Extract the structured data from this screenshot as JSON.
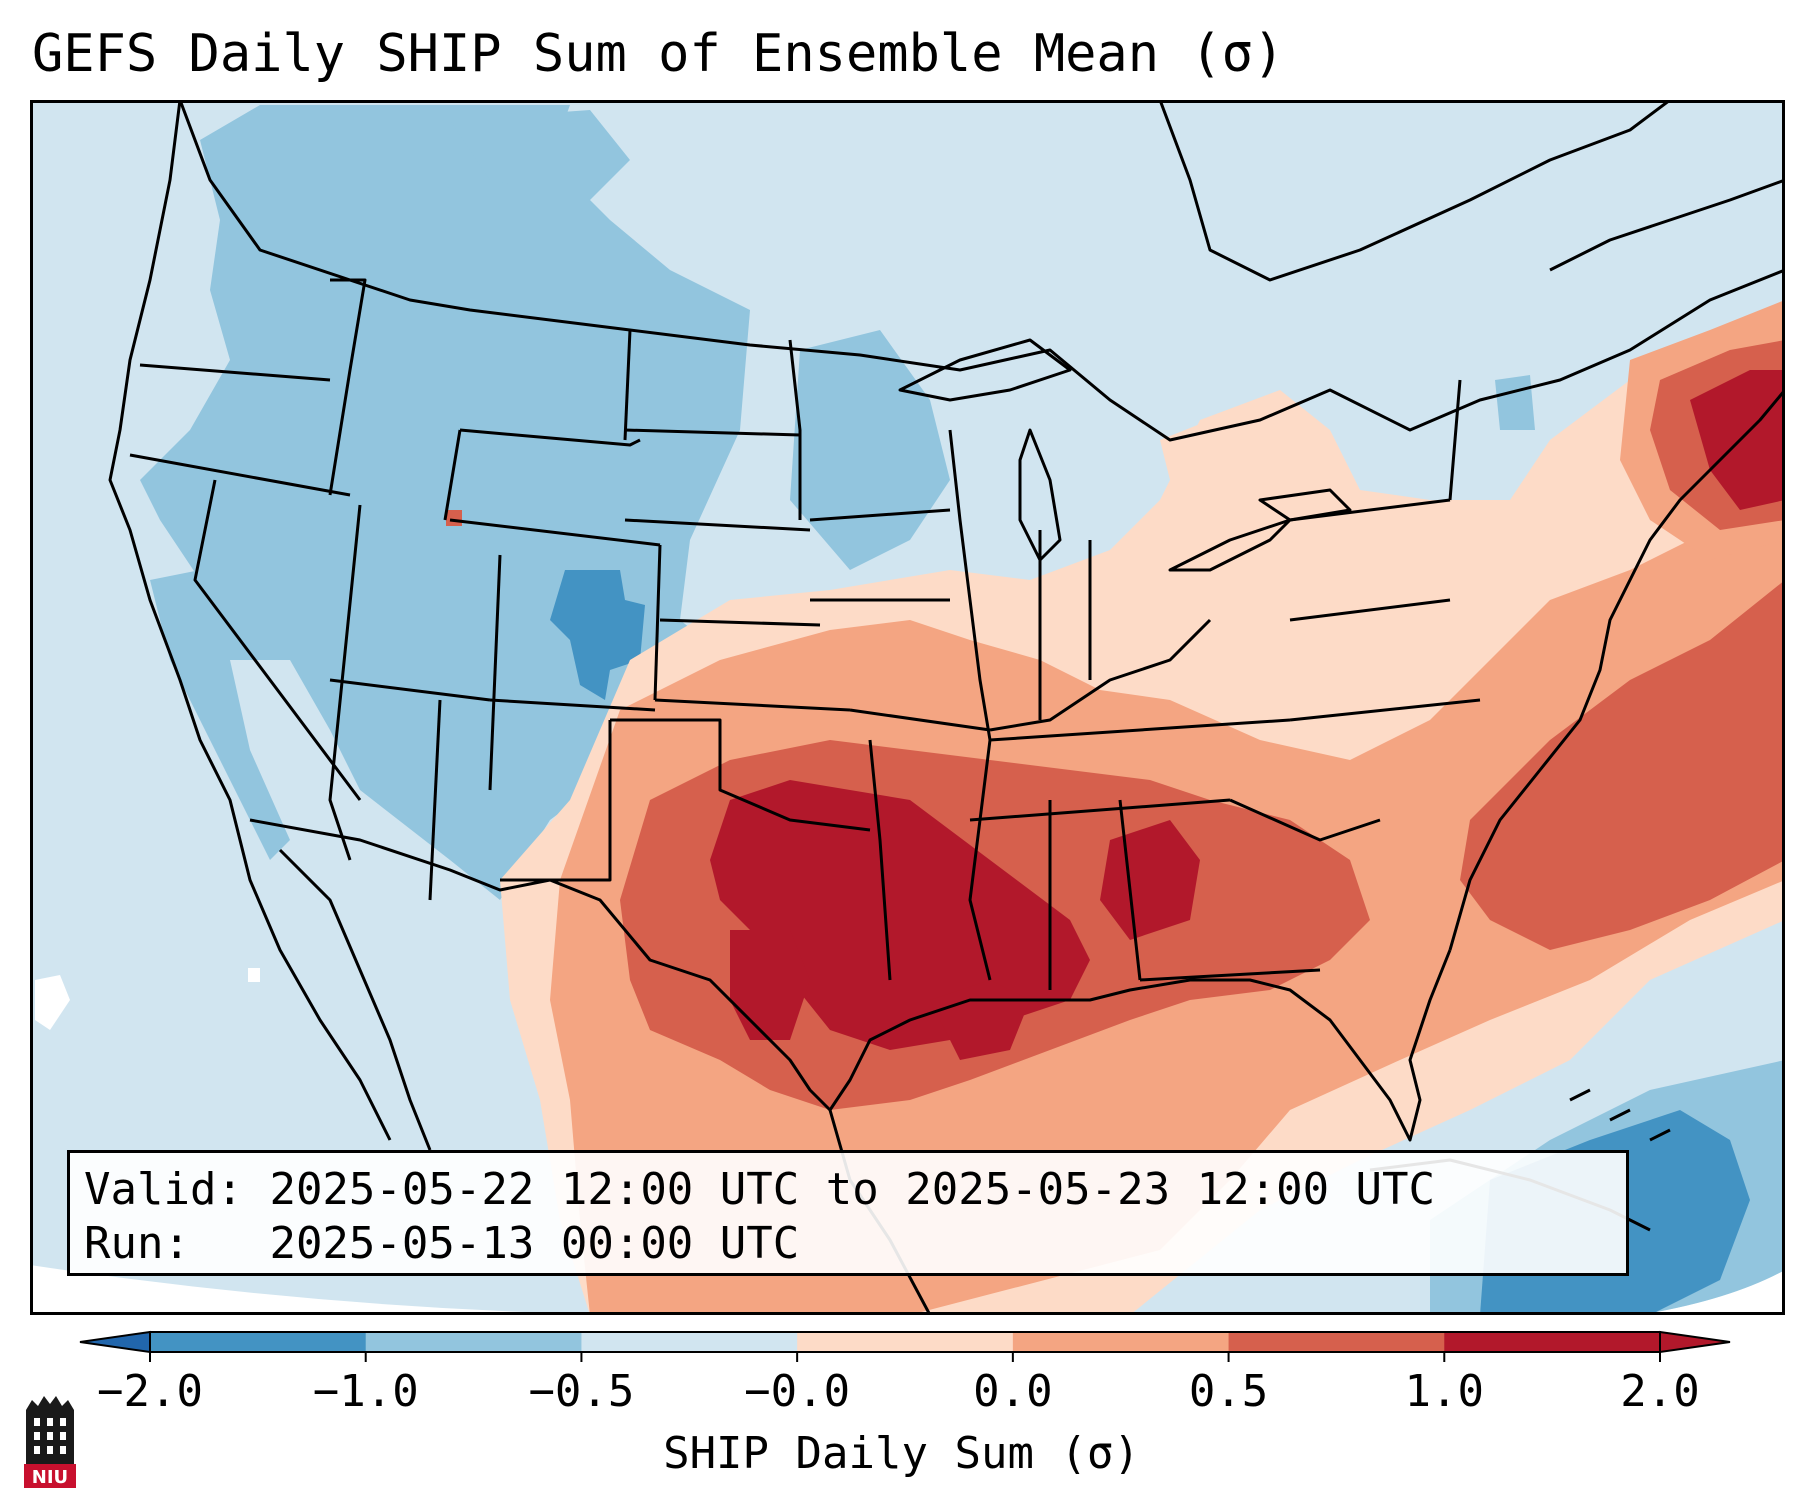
{
  "title": "GEFS Daily SHIP Sum of Ensemble Mean (σ)",
  "info": {
    "valid_label": "Valid:",
    "valid_value": "2025-05-22 12:00 UTC to 2025-05-23 12:00 UTC",
    "run_label": "Run:",
    "run_value": "2025-05-13 00:00 UTC"
  },
  "colorbar": {
    "label": "SHIP Daily Sum (σ)",
    "ticks": [
      "−2.0",
      "−1.0",
      "−0.5",
      "−0.0",
      "0.0",
      "0.5",
      "1.0",
      "2.0"
    ],
    "colors": [
      "#4393c3",
      "#92c5de",
      "#d1e5f0",
      "#fddbc7",
      "#f4a582",
      "#d6604d",
      "#b2182b"
    ],
    "extend": "both"
  },
  "map": {
    "region": "Continental United States",
    "ocean_color": "#d1e5f0",
    "strong_negative_color": "#4393c3",
    "negative_color": "#92c5de",
    "weak_negative_color": "#d1e5f0",
    "weak_positive_color": "#fddbc7",
    "positive_color": "#f4a582",
    "strong_positive_color": "#d6604d",
    "very_strong_positive_color": "#b2182b"
  },
  "logo": {
    "text": "NIU",
    "color": "#c8102e"
  }
}
